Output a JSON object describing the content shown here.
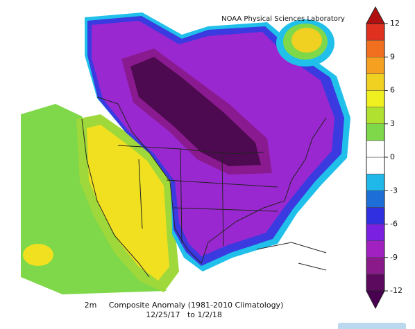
{
  "credit": "NOAA Physical Sciences Laboratory",
  "caption": {
    "line1": "2m     Composite Anomaly (1981-2010 Climatology)",
    "line2": "12/25/17   to 1/2/18"
  },
  "colorbar": {
    "ticks": [
      12,
      9,
      6,
      3,
      0,
      -3,
      -6,
      -9,
      -12
    ],
    "colors": [
      "#5c0a5e",
      "#8a1a8a",
      "#a020c0",
      "#7a20e0",
      "#3030e0",
      "#1e6ed8",
      "#20b8e8",
      "#ffffff",
      "#ffffff",
      "#7ed84a",
      "#b0e030",
      "#f0f020",
      "#f0d020",
      "#f5a020",
      "#f07020",
      "#e03020"
    ],
    "under_color": "#4a0050",
    "over_color": "#b01010"
  }
}
